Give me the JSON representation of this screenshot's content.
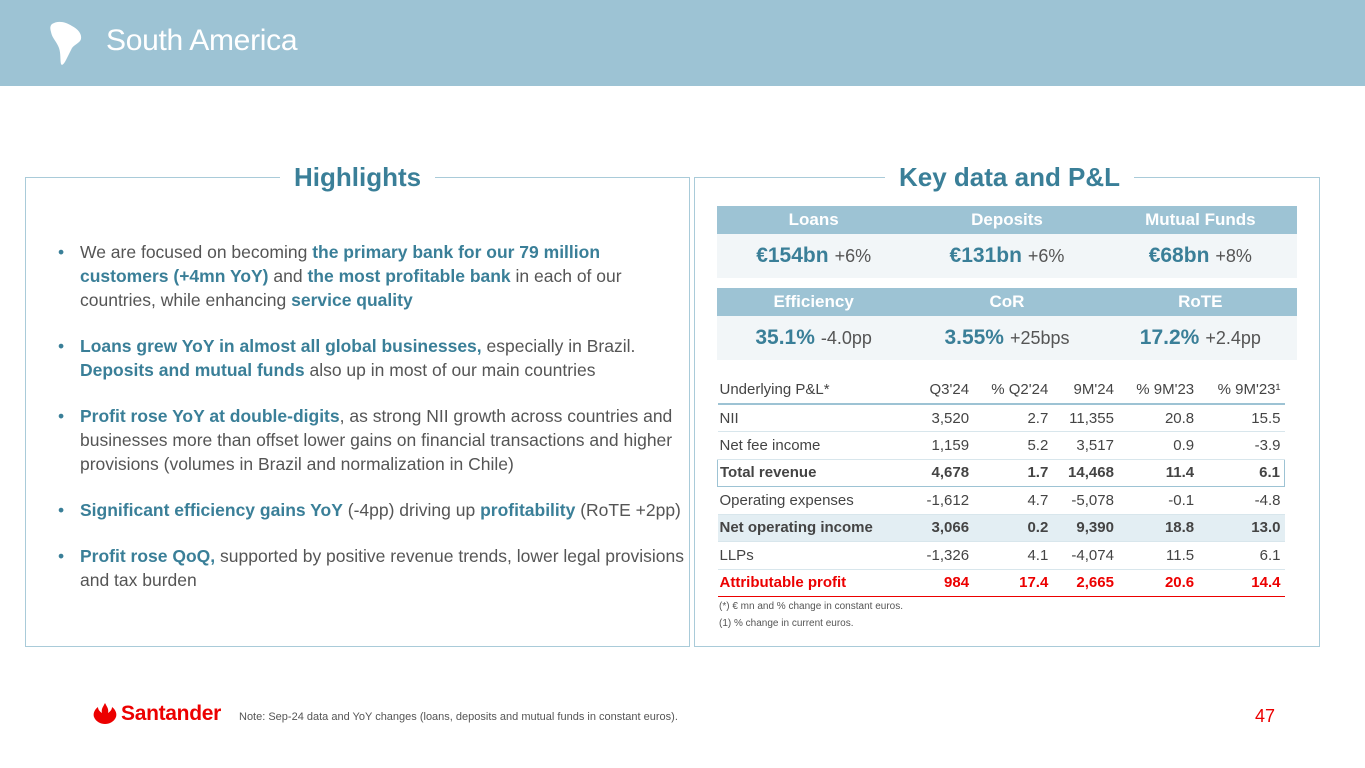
{
  "header": {
    "title": "South America"
  },
  "highlights": {
    "title": "Highlights",
    "bullets": [
      {
        "p1": "We are focused on becoming ",
        "b1": "the primary bank for our 79 million customers (+4mn YoY)",
        "p2": " and ",
        "b2": "the most profitable bank",
        "p3": " in each of our countries, while enhancing ",
        "b3": "service quality"
      },
      {
        "b1": "Loans grew YoY in almost all global businesses,",
        "p1": " especially in Brazil. ",
        "b2": "Deposits and mutual funds",
        "p2": " also up in most of our main countries"
      },
      {
        "b1": "Profit rose YoY at double-digits",
        "p1": ", as strong NII growth across countries and businesses more than offset lower gains on financial transactions and higher provisions (volumes in Brazil and normalization in Chile)"
      },
      {
        "b1": "Significant efficiency gains YoY",
        "p1": " (-4pp) driving up ",
        "b2": "profitability",
        "p2": " (RoTE +2pp)"
      },
      {
        "b1": "Profit rose QoQ,",
        "p1": " supported by positive revenue trends, lower legal provisions and tax burden"
      }
    ]
  },
  "keydata": {
    "title": "Key data and P&L",
    "row1": [
      {
        "label": "Loans",
        "value": "€154bn",
        "change": "+6%"
      },
      {
        "label": "Deposits",
        "value": "€131bn",
        "change": "+6%"
      },
      {
        "label": "Mutual Funds",
        "value": "€68bn",
        "change": "+8%"
      }
    ],
    "row2": [
      {
        "label": "Efficiency",
        "value": "35.1%",
        "change": "-4.0pp"
      },
      {
        "label": "CoR",
        "value": "3.55%",
        "change": "+25bps"
      },
      {
        "label": "RoTE",
        "value": "17.2%",
        "change": "+2.4pp"
      }
    ]
  },
  "pl": {
    "headers": [
      "Underlying P&L*",
      "Q3'24",
      "% Q2'24",
      "9M'24",
      "% 9M'23",
      "% 9M'23¹"
    ],
    "rows": [
      [
        "NII",
        "3,520",
        "2.7",
        "11,355",
        "20.8",
        "15.5"
      ],
      [
        "Net fee income",
        "1,159",
        "5.2",
        "3,517",
        "0.9",
        "-3.9"
      ],
      [
        "Total revenue",
        "4,678",
        "1.7",
        "14,468",
        "11.4",
        "6.1"
      ],
      [
        "Operating expenses",
        "-1,612",
        "4.7",
        "-5,078",
        "-0.1",
        "-4.8"
      ],
      [
        "Net operating income",
        "3,066",
        "0.2",
        "9,390",
        "18.8",
        "13.0"
      ],
      [
        "LLPs",
        "-1,326",
        "4.1",
        "-4,074",
        "11.5",
        "6.1"
      ],
      [
        "Attributable profit",
        "984",
        "17.4",
        "2,665",
        "20.6",
        "14.4"
      ]
    ],
    "footnote1": "(*) € mn and % change in constant euros.",
    "footnote2": "(1)  % change in current euros."
  },
  "footer": {
    "brand": "Santander",
    "note": "Note: Sep-24 data and YoY changes (loans, deposits and mutual funds in constant euros).",
    "page": "47"
  },
  "colors": {
    "accent": "#3a7f98",
    "header_bg": "#9dc3d4",
    "brand_red": "#ec0000"
  }
}
